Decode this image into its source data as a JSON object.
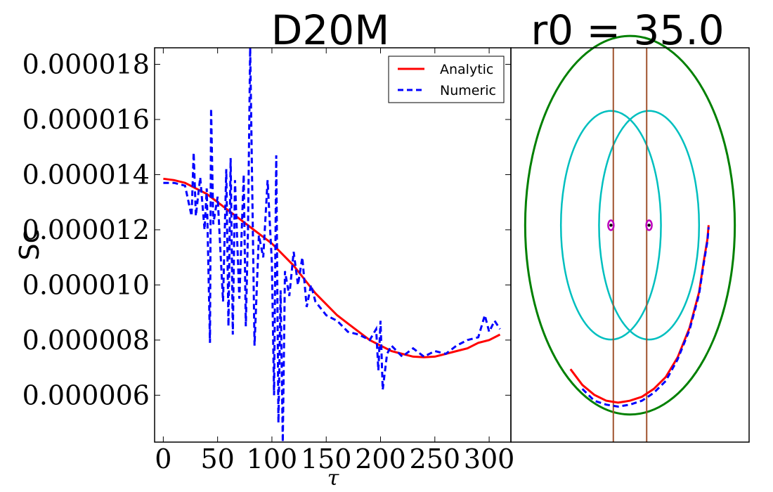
{
  "chart_data": [
    {
      "type": "line",
      "title": "D20M",
      "xlabel": "τ",
      "ylabel": "Sc",
      "xlim": [
        -8,
        320
      ],
      "ylim": [
        4.3e-06,
        1.86e-05
      ],
      "x_ticks": [
        0,
        50,
        100,
        150,
        200,
        250,
        300
      ],
      "x_tick_labels": [
        "0",
        "50",
        "100",
        "150",
        "200",
        "250",
        "300"
      ],
      "y_ticks": [
        6e-06,
        8e-06,
        1e-05,
        1.2e-05,
        1.4e-05,
        1.6e-05,
        1.8e-05
      ],
      "y_tick_labels": [
        "0.000006",
        "0.000008",
        "0.000010",
        "0.000012",
        "0.000014",
        "0.000016",
        "0.000018"
      ],
      "legend": {
        "placement": "top-right",
        "entries": [
          "Analytic",
          "Numeric"
        ]
      },
      "grid": false,
      "series": [
        {
          "name": "Analytic",
          "color": "#ff0000",
          "style": "solid",
          "x": [
            0,
            10,
            20,
            30,
            40,
            50,
            60,
            70,
            80,
            90,
            100,
            110,
            120,
            130,
            140,
            150,
            160,
            170,
            180,
            190,
            200,
            210,
            220,
            230,
            240,
            250,
            260,
            270,
            280,
            290,
            300,
            310
          ],
          "y": [
            1.385e-05,
            1.38e-05,
            1.37e-05,
            1.35e-05,
            1.33e-05,
            1.3e-05,
            1.27e-05,
            1.24e-05,
            1.21e-05,
            1.18e-05,
            1.15e-05,
            1.11e-05,
            1.07e-05,
            1.02e-05,
            9.7e-06,
            9.3e-06,
            8.9e-06,
            8.6e-06,
            8.3e-06,
            8e-06,
            7.8e-06,
            7.6e-06,
            7.5e-06,
            7.4e-06,
            7.38e-06,
            7.4e-06,
            7.5e-06,
            7.6e-06,
            7.7e-06,
            7.9e-06,
            8e-06,
            8.2e-06
          ]
        },
        {
          "name": "Numeric",
          "color": "#0000ff",
          "style": "dashed",
          "x": [
            0,
            10,
            20,
            26,
            28,
            30,
            34,
            38,
            40,
            43,
            44,
            46,
            50,
            55,
            58,
            60,
            62,
            64,
            66,
            70,
            74,
            76,
            78,
            80,
            84,
            88,
            92,
            96,
            100,
            102,
            104,
            106,
            108,
            110,
            112,
            116,
            120,
            124,
            128,
            132,
            136,
            140,
            150,
            160,
            170,
            180,
            190,
            196,
            198,
            200,
            202,
            206,
            210,
            220,
            230,
            240,
            250,
            260,
            270,
            280,
            290,
            296,
            300,
            305,
            310
          ],
          "y": [
            1.37e-05,
            1.37e-05,
            1.36e-05,
            1.25e-05,
            1.48e-05,
            1.25e-05,
            1.39e-05,
            1.2e-05,
            1.35e-05,
            7.9e-06,
            1.64e-05,
            1.22e-05,
            1.32e-05,
            9.4e-06,
            1.42e-05,
            8.5e-06,
            1.46e-05,
            8.2e-06,
            1.38e-05,
            9.5e-06,
            1.4e-05,
            8.5e-06,
            1.2e-05,
            1.86e-05,
            7.8e-06,
            1.18e-05,
            1.1e-05,
            1.38e-05,
            1.08e-05,
            6e-06,
            1.47e-05,
            5e-06,
            9.8e-06,
            4.3e-06,
            1.05e-05,
            9.6e-06,
            1.12e-05,
            1e-05,
            1.1e-05,
            9.2e-06,
            1e-05,
            9.4e-06,
            8.9e-06,
            8.7e-06,
            8.3e-06,
            8.2e-06,
            8e-06,
            8.4e-06,
            6.9e-06,
            8.7e-06,
            6.2e-06,
            7.5e-06,
            7.8e-06,
            7.4e-06,
            7.7e-06,
            7.4e-06,
            7.6e-06,
            7.5e-06,
            7.8e-06,
            8e-06,
            8.1e-06,
            8.9e-06,
            8.3e-06,
            8.7e-06,
            8.4e-06
          ]
        }
      ]
    },
    {
      "type": "line",
      "title": "r0 = 35.0",
      "grid": false,
      "xlim": [
        -1,
        1
      ],
      "ylim": [
        -1,
        1
      ],
      "series": [
        {
          "name": "",
          "shape": "ellipse",
          "color": "#008000",
          "cx": 0,
          "cy": 0.1,
          "rx": 0.88,
          "ry": 0.96
        },
        {
          "name": "",
          "shape": "ellipse",
          "color": "#00bfbf",
          "cx": -0.16,
          "cy": 0.1,
          "rx": 0.42,
          "ry": 0.58
        },
        {
          "name": "",
          "shape": "ellipse",
          "color": "#00bfbf",
          "cx": 0.16,
          "cy": 0.1,
          "rx": 0.42,
          "ry": 0.58
        },
        {
          "name": "",
          "shape": "vline",
          "color": "#a0522d",
          "x": -0.14
        },
        {
          "name": "",
          "shape": "vline",
          "color": "#a0522d",
          "x": 0.14
        },
        {
          "name": "",
          "shape": "point",
          "color": "#bf00bf",
          "x": -0.16,
          "y": 0.1
        },
        {
          "name": "",
          "shape": "point",
          "color": "#bf00bf",
          "x": 0.16,
          "y": 0.1
        },
        {
          "name": "Analytic",
          "color": "#ff0000",
          "style": "solid",
          "x": [
            -0.5,
            -0.4,
            -0.3,
            -0.2,
            -0.1,
            0.0,
            0.1,
            0.2,
            0.3,
            0.4,
            0.5,
            0.58,
            0.62,
            0.65,
            0.66
          ],
          "y": [
            -0.63,
            -0.71,
            -0.76,
            -0.79,
            -0.8,
            -0.79,
            -0.77,
            -0.73,
            -0.67,
            -0.57,
            -0.42,
            -0.24,
            -0.08,
            0.03,
            0.1
          ]
        },
        {
          "name": "Numeric",
          "color": "#0000ff",
          "style": "dashed",
          "x": [
            -0.4,
            -0.3,
            -0.2,
            -0.1,
            0.0,
            0.1,
            0.2,
            0.3,
            0.4,
            0.5,
            0.58,
            0.62,
            0.65,
            0.66
          ],
          "y": [
            -0.73,
            -0.79,
            -0.81,
            -0.82,
            -0.81,
            -0.79,
            -0.75,
            -0.69,
            -0.58,
            -0.43,
            -0.25,
            -0.09,
            0.02,
            0.09
          ]
        }
      ]
    }
  ]
}
